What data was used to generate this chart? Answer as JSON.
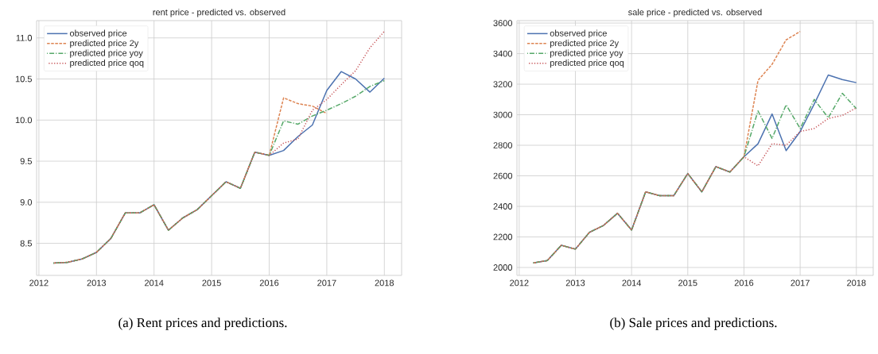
{
  "chart_data": [
    {
      "type": "line",
      "title": "rent price - predicted vs. observed",
      "annotations": [
        "(a) Rent prices and predictions."
      ],
      "x": [
        2012.25,
        2012.5,
        2012.75,
        2013,
        2013.25,
        2013.5,
        2013.75,
        2014,
        2014.25,
        2014.5,
        2014.75,
        2015,
        2015.25,
        2015.5,
        2015.75,
        2016,
        2016.25,
        2016.5,
        2016.75,
        2017,
        2017.25,
        2017.5,
        2017.75,
        2018
      ],
      "series": [
        {
          "name": "observed price",
          "color": "#4c72b0",
          "line_style": "solid",
          "values": [
            8.26,
            8.27,
            8.31,
            8.39,
            8.56,
            8.87,
            8.87,
            8.97,
            8.66,
            8.81,
            8.91,
            9.08,
            9.25,
            9.17,
            9.61,
            9.57,
            9.63,
            9.8,
            9.94,
            10.36,
            10.59,
            10.5,
            10.34,
            10.51
          ]
        },
        {
          "name": "predicted price 2y",
          "color": "#dd8452",
          "line_style": "dashed",
          "values": [
            8.26,
            8.27,
            8.31,
            8.39,
            8.56,
            8.87,
            8.87,
            8.97,
            8.66,
            8.81,
            8.91,
            9.08,
            9.25,
            9.17,
            9.61,
            9.57,
            10.27,
            10.2,
            10.17,
            10.08,
            null,
            null,
            null,
            null
          ]
        },
        {
          "name": "predicted price yoy",
          "color": "#55a868",
          "line_style": "dashdot",
          "values": [
            8.26,
            8.27,
            8.31,
            8.39,
            8.56,
            8.87,
            8.87,
            8.97,
            8.66,
            8.81,
            8.91,
            9.08,
            9.25,
            9.17,
            9.61,
            9.57,
            9.99,
            9.95,
            10.05,
            10.12,
            10.2,
            10.29,
            10.41,
            10.48
          ]
        },
        {
          "name": "predicted price qoq",
          "color": "#c44e52",
          "line_style": "dotted",
          "values": [
            8.26,
            8.27,
            8.31,
            8.39,
            8.56,
            8.87,
            8.87,
            8.97,
            8.66,
            8.81,
            8.91,
            9.08,
            9.25,
            9.17,
            9.61,
            9.57,
            9.72,
            9.77,
            10.12,
            10.25,
            10.43,
            10.6,
            10.88,
            11.08
          ]
        }
      ],
      "xlim": [
        2011.96,
        2018.3
      ],
      "ylim": [
        8.11,
        11.21
      ],
      "xticks": [
        2012,
        2013,
        2014,
        2015,
        2016,
        2017,
        2018
      ],
      "yticks": [
        8.5,
        {
          "value": 9,
          "label": "9.0"
        },
        9.5,
        {
          "value": 10,
          "label": "10.0"
        },
        10.5,
        {
          "value": 11,
          "label": "11.0"
        }
      ],
      "grid": true,
      "legend": "top left"
    },
    {
      "type": "line",
      "title": "sale price - predicted vs. observed",
      "annotations": [
        "(b) Sale prices and predictions."
      ],
      "x": [
        2012.25,
        2012.5,
        2012.75,
        2013,
        2013.25,
        2013.5,
        2013.75,
        2014,
        2014.25,
        2014.5,
        2014.75,
        2015,
        2015.25,
        2015.5,
        2015.75,
        2016,
        2016.25,
        2016.5,
        2016.75,
        2017,
        2017.25,
        2017.5,
        2017.75,
        2018
      ],
      "series": [
        {
          "name": "observed price",
          "color": "#4c72b0",
          "line_style": "solid",
          "values": [
            2030,
            2045,
            2145,
            2120,
            2230,
            2275,
            2355,
            2245,
            2495,
            2470,
            2470,
            2615,
            2495,
            2660,
            2625,
            2725,
            2810,
            3005,
            2765,
            2890,
            3070,
            3260,
            3230,
            3210
          ]
        },
        {
          "name": "predicted price 2y",
          "color": "#dd8452",
          "line_style": "dashed",
          "values": [
            2030,
            2045,
            2145,
            2120,
            2230,
            2275,
            2355,
            2245,
            2495,
            2470,
            2470,
            2615,
            2495,
            2660,
            2625,
            2725,
            3225,
            3330,
            3490,
            3545,
            null,
            null,
            null,
            null
          ]
        },
        {
          "name": "predicted price yoy",
          "color": "#55a868",
          "line_style": "dashdot",
          "values": [
            2030,
            2045,
            2145,
            2120,
            2230,
            2275,
            2355,
            2245,
            2495,
            2470,
            2470,
            2615,
            2495,
            2660,
            2625,
            2725,
            3025,
            2845,
            3065,
            2910,
            3100,
            2980,
            3140,
            3040
          ]
        },
        {
          "name": "predicted price qoq",
          "color": "#c44e52",
          "line_style": "dotted",
          "values": [
            2030,
            2045,
            2145,
            2120,
            2230,
            2275,
            2355,
            2245,
            2495,
            2470,
            2470,
            2615,
            2495,
            2660,
            2625,
            2725,
            2665,
            2810,
            2800,
            2890,
            2910,
            2975,
            2995,
            3045
          ]
        }
      ],
      "xlim": [
        2011.96,
        2018.3
      ],
      "ylim": [
        1948,
        3616
      ],
      "xticks": [
        2012,
        2013,
        2014,
        2015,
        2016,
        2017,
        2018
      ],
      "yticks": [
        2000,
        2200,
        2400,
        2600,
        2800,
        3000,
        3200,
        3400,
        3600
      ],
      "grid": true,
      "legend": "top left"
    }
  ]
}
